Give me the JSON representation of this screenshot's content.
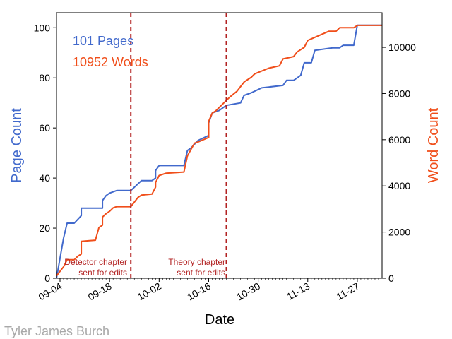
{
  "credit": "Tyler James Burch",
  "colors": {
    "pages": "#4169cc",
    "words": "#f04e1a",
    "annotation": "#b22222"
  },
  "chart_data": {
    "type": "line",
    "title": "",
    "xlabel": "Date",
    "ylabel_left": "Page Count",
    "ylabel_right": "Word Count",
    "xlim": [
      "2019-09-03",
      "2019-12-04"
    ],
    "ylim_left": [
      0,
      106
    ],
    "ylim_right": [
      0,
      11500
    ],
    "x_tick_labels": [
      "09-04",
      "09-18",
      "10-02",
      "10-16",
      "10-30",
      "11-13",
      "11-27"
    ],
    "x_tick_dates": [
      "2019-09-04",
      "2019-09-18",
      "2019-10-02",
      "2019-10-16",
      "2019-10-30",
      "2019-11-13",
      "2019-11-27"
    ],
    "y_ticks_left": [
      0,
      20,
      40,
      60,
      80,
      100
    ],
    "y_ticks_right": [
      0,
      2000,
      4000,
      6000,
      8000,
      10000
    ],
    "legend": [
      {
        "label": "101 Pages",
        "color": "#4169cc"
      },
      {
        "label": "10952 Words",
        "color": "#f04e1a"
      }
    ],
    "vlines": [
      {
        "date": "2019-09-24",
        "label_lines": [
          "Detector chapter",
          "sent for edits"
        ]
      },
      {
        "date": "2019-10-21",
        "label_lines": [
          "Theory chapter",
          "sent for edits"
        ]
      }
    ],
    "series": [
      {
        "name": "101 Pages",
        "axis": "left",
        "color": "#4169cc",
        "points": [
          [
            "2019-09-03",
            0
          ],
          [
            "2019-09-05",
            16
          ],
          [
            "2019-09-06",
            22
          ],
          [
            "2019-09-08",
            22
          ],
          [
            "2019-09-10",
            25
          ],
          [
            "2019-09-10",
            28
          ],
          [
            "2019-09-16",
            28
          ],
          [
            "2019-09-16",
            31
          ],
          [
            "2019-09-17",
            33
          ],
          [
            "2019-09-18",
            34
          ],
          [
            "2019-09-20",
            35
          ],
          [
            "2019-09-24",
            35
          ],
          [
            "2019-09-27",
            39
          ],
          [
            "2019-09-30",
            39
          ],
          [
            "2019-10-01",
            40
          ],
          [
            "2019-10-01",
            43
          ],
          [
            "2019-10-02",
            45
          ],
          [
            "2019-10-09",
            45
          ],
          [
            "2019-10-10",
            51
          ],
          [
            "2019-10-11",
            52
          ],
          [
            "2019-10-13",
            55
          ],
          [
            "2019-10-16",
            57
          ],
          [
            "2019-10-16",
            62
          ],
          [
            "2019-10-17",
            66
          ],
          [
            "2019-10-19",
            67
          ],
          [
            "2019-10-21",
            69
          ],
          [
            "2019-10-25",
            70
          ],
          [
            "2019-10-26",
            73
          ],
          [
            "2019-10-28",
            74
          ],
          [
            "2019-10-31",
            76
          ],
          [
            "2019-11-06",
            77
          ],
          [
            "2019-11-07",
            79
          ],
          [
            "2019-11-09",
            79
          ],
          [
            "2019-11-11",
            81
          ],
          [
            "2019-11-12",
            86
          ],
          [
            "2019-11-14",
            86
          ],
          [
            "2019-11-15",
            91
          ],
          [
            "2019-11-20",
            92
          ],
          [
            "2019-11-22",
            92
          ],
          [
            "2019-11-23",
            93
          ],
          [
            "2019-11-26",
            93
          ],
          [
            "2019-11-27",
            101
          ],
          [
            "2019-12-04",
            101
          ]
        ]
      },
      {
        "name": "10952 Words",
        "axis": "right",
        "color": "#f04e1a",
        "points": [
          [
            "2019-09-03",
            100
          ],
          [
            "2019-09-05",
            500
          ],
          [
            "2019-09-06",
            800
          ],
          [
            "2019-09-08",
            800
          ],
          [
            "2019-09-09",
            950
          ],
          [
            "2019-09-10",
            1050
          ],
          [
            "2019-09-10",
            1600
          ],
          [
            "2019-09-14",
            1650
          ],
          [
            "2019-09-15",
            2200
          ],
          [
            "2019-09-16",
            2300
          ],
          [
            "2019-09-16",
            2650
          ],
          [
            "2019-09-17",
            2800
          ],
          [
            "2019-09-18",
            2900
          ],
          [
            "2019-09-19",
            3050
          ],
          [
            "2019-09-20",
            3100
          ],
          [
            "2019-09-24",
            3100
          ],
          [
            "2019-09-26",
            3500
          ],
          [
            "2019-09-27",
            3600
          ],
          [
            "2019-09-30",
            3650
          ],
          [
            "2019-10-01",
            3950
          ],
          [
            "2019-10-01",
            4150
          ],
          [
            "2019-10-02",
            4450
          ],
          [
            "2019-10-04",
            4550
          ],
          [
            "2019-10-09",
            4600
          ],
          [
            "2019-10-10",
            5300
          ],
          [
            "2019-10-12",
            5850
          ],
          [
            "2019-10-13",
            5900
          ],
          [
            "2019-10-16",
            6100
          ],
          [
            "2019-10-16",
            6800
          ],
          [
            "2019-10-17",
            7150
          ],
          [
            "2019-10-18",
            7250
          ],
          [
            "2019-10-21",
            7700
          ],
          [
            "2019-10-22",
            7850
          ],
          [
            "2019-10-24",
            8100
          ],
          [
            "2019-10-25",
            8300
          ],
          [
            "2019-10-26",
            8500
          ],
          [
            "2019-10-28",
            8700
          ],
          [
            "2019-10-29",
            8850
          ],
          [
            "2019-11-02",
            9100
          ],
          [
            "2019-11-05",
            9200
          ],
          [
            "2019-11-06",
            9500
          ],
          [
            "2019-11-09",
            9600
          ],
          [
            "2019-11-10",
            9800
          ],
          [
            "2019-11-12",
            10000
          ],
          [
            "2019-11-13",
            10300
          ],
          [
            "2019-11-16",
            10500
          ],
          [
            "2019-11-19",
            10700
          ],
          [
            "2019-11-21",
            10700
          ],
          [
            "2019-11-22",
            10850
          ],
          [
            "2019-11-26",
            10850
          ],
          [
            "2019-11-27",
            10952
          ],
          [
            "2019-12-04",
            10952
          ]
        ]
      }
    ]
  }
}
